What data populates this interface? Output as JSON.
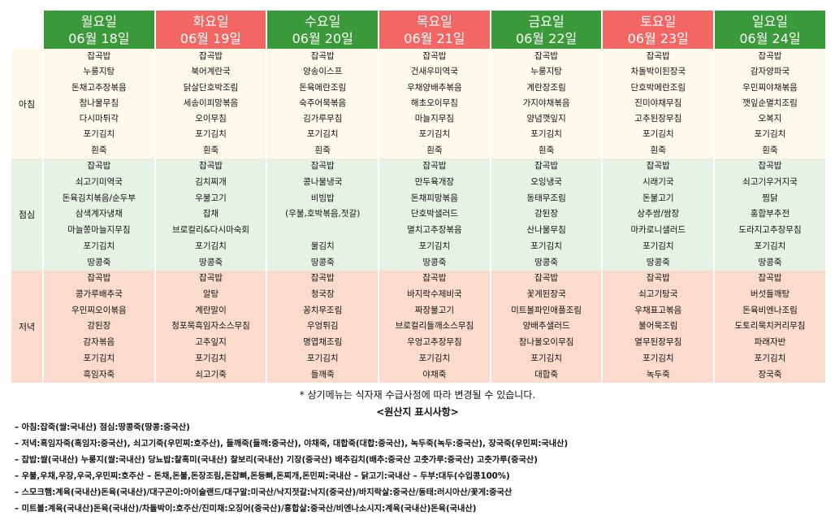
{
  "days": [
    {
      "name": "월요일",
      "date": "06월 18일",
      "color": "#3a9a3a"
    },
    {
      "name": "화요일",
      "date": "06월 19일",
      "color": "#f26663"
    },
    {
      "name": "수요일",
      "date": "06월 20일",
      "color": "#3a9a3a"
    },
    {
      "name": "목요일",
      "date": "06월 21일",
      "color": "#f26663"
    },
    {
      "name": "금요일",
      "date": "06월 22일",
      "color": "#3a9a3a"
    },
    {
      "name": "토요일",
      "date": "06월 23일",
      "color": "#f26663"
    },
    {
      "name": "일요일",
      "date": "06월 24일",
      "color": "#3a9a3a"
    }
  ],
  "meals": [
    {
      "label": "아침",
      "items": [
        [
          "잡곡밥",
          "누룽지탕",
          "돈채고추장볶음",
          "참나물무침",
          "다시마튀각",
          "포기김치",
          "흰죽"
        ],
        [
          "잡곡밥",
          "북어계란국",
          "닭살단호박조림",
          "세송이피망볶음",
          "오이무침",
          "포기김치",
          "흰죽"
        ],
        [
          "잡곡밥",
          "양송이스프",
          "돈육메란조림",
          "숙주어묵볶음",
          "김가루무침",
          "포기김치",
          "흰죽"
        ],
        [
          "잡곡밥",
          "건새우미역국",
          "우채양배추볶음",
          "해초오이무침",
          "마늘지무침",
          "포기김치",
          "흰죽"
        ],
        [
          "잡곡밥",
          "누룽지탕",
          "계란장조림",
          "가지야채볶음",
          "양념깻잎지",
          "포기김치",
          "흰죽"
        ],
        [
          "잡곡밥",
          "차돌박이된장국",
          "단호박메란조림",
          "진미야채무침",
          "고추된장무침",
          "포기김치",
          "흰죽"
        ],
        [
          "잡곡밥",
          "감자양파국",
          "우민찌야채볶음",
          "깻잎순멸치조림",
          "오복지",
          "포기김치",
          "흰죽"
        ]
      ]
    },
    {
      "label": "점심",
      "items": [
        [
          "잡곡밥",
          "쇠고기미역국",
          "돈육김치볶음/순두부",
          "삼색계자냉채",
          "마늘쫑마늘지무침",
          "포기김치",
          "땅콩죽"
        ],
        [
          "잡곡밥",
          "김치찌개",
          "우불고기",
          "잡채",
          "브로컬리&다시마숙회",
          "포기김치",
          "땅콩죽"
        ],
        [
          "잡곡밥",
          "콩나물냉국",
          "비빔밥",
          "(우불,호박볶음,젓갈)",
          "",
          "물김치",
          "땅콩죽"
        ],
        [
          "잡곡밥",
          "만두육개장",
          "돈채피망볶음",
          "단호박샐러드",
          "멸치고추장볶음",
          "포기김치",
          "땅콩죽"
        ],
        [
          "잡곡밥",
          "오잉냉국",
          "동태무조림",
          "강된장",
          "산나물무침",
          "포기김치",
          "땅콩죽"
        ],
        [
          "잡곡밥",
          "시래기국",
          "돈불고기",
          "상추쌈/쌈장",
          "마카로니샐러드",
          "포기김치",
          "땅콩죽"
        ],
        [
          "잡곡밥",
          "쇠고기우거지국",
          "찜닭",
          "홍합부추전",
          "도라지고추장무침",
          "포기김치",
          "땅콩죽"
        ]
      ]
    },
    {
      "label": "저녁",
      "items": [
        [
          "잡곡밥",
          "콩가루배추국",
          "우민찌오이볶음",
          "강된장",
          "감자볶음",
          "포기김치",
          "흑임자죽"
        ],
        [
          "잡곡밥",
          "알탕",
          "계란말이",
          "청포묵흑임자소스무침",
          "고추잎지",
          "포기김치",
          "쇠고기죽"
        ],
        [
          "잡곡밥",
          "청국장",
          "꽁치무조림",
          "우엉튀김",
          "명엽채조림",
          "포기김치",
          "들깨죽"
        ],
        [
          "잡곡밥",
          "바지락수제비국",
          "짜장불고기",
          "브로컬리들깨소스무침",
          "우엉고추장무침",
          "포기김치",
          "야채죽"
        ],
        [
          "잡곡밥",
          "꽃게된장국",
          "미트볼파인애플조림",
          "양배추샐러드",
          "참나물오이무침",
          "포기김치",
          "대합죽"
        ],
        [
          "잡곡밥",
          "쇠고기탕국",
          "우채표고볶음",
          "불어묵조림",
          "열무된장무침",
          "포기김치",
          "녹두죽"
        ],
        [
          "잡곡밥",
          "버섯들깨탕",
          "돈육비엔나조림",
          "도토리묵치커리무침",
          "파래자반",
          "포기김치",
          "장국죽"
        ]
      ]
    }
  ],
  "notice": "* 상기메뉴는 식자재 수급사정에 따라 변경될 수 있습니다.",
  "origin_title": "<원산지 표시사항>",
  "origin_lines": [
    "– 아침:잡죽(쌀:국내산) 점심:땅콩죽(땅콩:중국산)",
    "– 저녁:흑임자죽(흑임자:중국산), 쇠고기죽(우민찌:호주산), 들깨죽(들깨:중국산), 야채죽, 대합죽(대합:중국산), 녹두죽(녹두:중국산), 장국죽(우민찌:국내산)",
    "– 잡밥:쌀(국내산) 누룽지(쌀:국내산) 당뇨밥:찰흑미(국내산) 찰보리(국내산) 기장(중국산) 배추김치(배추:중국산 고춧가루:중국산) 고춧가루(중국산)",
    "– 우불,우채,우장,우국,우민찌:호주산 – 돈채,돈불,돈장조림,돈잡뼈,돈등뼈,돈찌개,돈민찌:국내산 – 닭고기:국내산 – 두부:대두(수입콩100%)",
    "– 스모크햄:계육(국내산)돈육(국내산)/대구곤이:아이슬랜드/대구알:미국산/낙지젓갈:낙지(중국산)/바지락살:중국산/동태:러시아산/꽃게:중국산",
    "– 미트볼:계육(국내산)돈육(국내산)/차돌박이:호주산/진미채:오징어(중국산)/홍합살:중국산/비엔나소시지:계육(국내산)돈육(국내산)"
  ]
}
